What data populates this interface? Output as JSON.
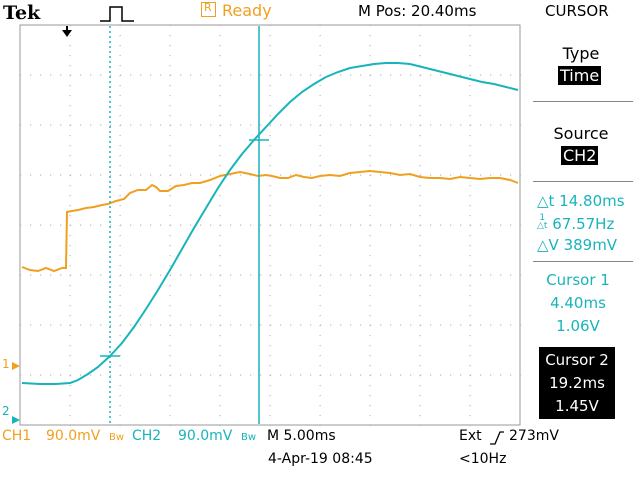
{
  "header": {
    "brand": "Tek",
    "status": "Ready",
    "m_pos": "M Pos: 20.40ms",
    "menu_title": "CURSOR"
  },
  "menu": {
    "type_label": "Type",
    "type_value": "Time",
    "source_label": "Source",
    "source_value": "CH2",
    "delta_t": "△t 14.80ms",
    "inv_delta_t": "67.57Hz",
    "delta_v": "△V 389mV",
    "cursor1": {
      "label": "Cursor 1",
      "time": "4.40ms",
      "value": "1.06V"
    },
    "cursor2": {
      "label": "Cursor 2",
      "time": "19.2ms",
      "value": "1.45V"
    }
  },
  "footer": {
    "ch1": "CH1",
    "ch1_scale": "90.0mV",
    "bw": "Bw",
    "ch2": "CH2",
    "ch2_scale": "90.0mV",
    "timebase": "M 5.00ms",
    "trigger": "Ext",
    "trigger_level": "273mV",
    "date": "4-Apr-19 08:45",
    "freq": "<10Hz"
  },
  "markers": {
    "ch1": "1",
    "ch2": "2"
  },
  "colors": {
    "ch1": "#f0a020",
    "ch2": "#18b4bc",
    "grid": "#b8b8b8"
  }
}
